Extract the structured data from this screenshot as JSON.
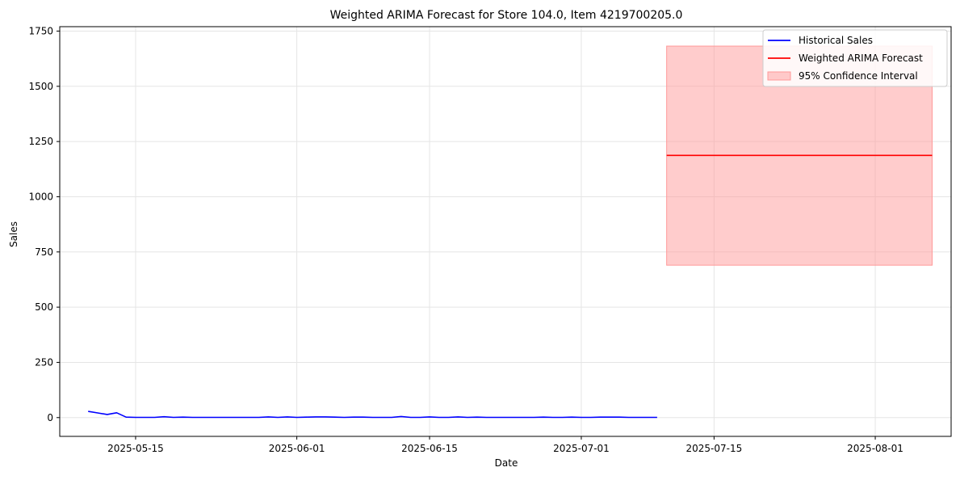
{
  "chart_data": {
    "type": "line",
    "title": "Weighted ARIMA Forecast for Store 104.0, Item 4219700205.0",
    "xlabel": "Date",
    "ylabel": "Sales",
    "x_axis_type": "date",
    "xlim": [
      "2025-05-07",
      "2025-08-09"
    ],
    "ylim": [
      -85,
      1770
    ],
    "x_ticks": [
      "2025-05-15",
      "2025-06-01",
      "2025-06-15",
      "2025-07-01",
      "2025-07-15",
      "2025-08-01"
    ],
    "y_ticks": [
      0,
      250,
      500,
      750,
      1000,
      1250,
      1500,
      1750
    ],
    "grid": true,
    "legend_position": "top-right",
    "series": [
      {
        "name": "Historical Sales",
        "kind": "line",
        "color": "#0000ff",
        "points": [
          [
            "2025-05-10",
            28
          ],
          [
            "2025-05-11",
            21
          ],
          [
            "2025-05-12",
            14
          ],
          [
            "2025-05-13",
            22
          ],
          [
            "2025-05-14",
            2
          ],
          [
            "2025-05-15",
            1
          ],
          [
            "2025-05-16",
            1
          ],
          [
            "2025-05-17",
            1
          ],
          [
            "2025-05-18",
            4
          ],
          [
            "2025-05-19",
            1
          ],
          [
            "2025-05-20",
            2
          ],
          [
            "2025-05-21",
            1
          ],
          [
            "2025-05-22",
            1
          ],
          [
            "2025-05-23",
            1
          ],
          [
            "2025-05-24",
            1
          ],
          [
            "2025-05-25",
            1
          ],
          [
            "2025-05-26",
            1
          ],
          [
            "2025-05-27",
            1
          ],
          [
            "2025-05-28",
            1
          ],
          [
            "2025-05-29",
            3
          ],
          [
            "2025-05-30",
            1
          ],
          [
            "2025-05-31",
            3
          ],
          [
            "2025-06-01",
            1
          ],
          [
            "2025-06-02",
            2
          ],
          [
            "2025-06-03",
            3
          ],
          [
            "2025-06-04",
            3
          ],
          [
            "2025-06-05",
            2
          ],
          [
            "2025-06-06",
            1
          ],
          [
            "2025-06-07",
            2
          ],
          [
            "2025-06-08",
            2
          ],
          [
            "2025-06-09",
            1
          ],
          [
            "2025-06-10",
            1
          ],
          [
            "2025-06-11",
            1
          ],
          [
            "2025-06-12",
            5
          ],
          [
            "2025-06-13",
            1
          ],
          [
            "2025-06-14",
            1
          ],
          [
            "2025-06-15",
            3
          ],
          [
            "2025-06-16",
            1
          ],
          [
            "2025-06-17",
            1
          ],
          [
            "2025-06-18",
            3
          ],
          [
            "2025-06-19",
            1
          ],
          [
            "2025-06-20",
            2
          ],
          [
            "2025-06-21",
            1
          ],
          [
            "2025-06-22",
            1
          ],
          [
            "2025-06-23",
            1
          ],
          [
            "2025-06-24",
            1
          ],
          [
            "2025-06-25",
            1
          ],
          [
            "2025-06-26",
            1
          ],
          [
            "2025-06-27",
            2
          ],
          [
            "2025-06-28",
            1
          ],
          [
            "2025-06-29",
            1
          ],
          [
            "2025-06-30",
            2
          ],
          [
            "2025-07-01",
            1
          ],
          [
            "2025-07-02",
            1
          ],
          [
            "2025-07-03",
            2
          ],
          [
            "2025-07-04",
            2
          ],
          [
            "2025-07-05",
            2
          ],
          [
            "2025-07-06",
            1
          ],
          [
            "2025-07-07",
            1
          ],
          [
            "2025-07-08",
            1
          ],
          [
            "2025-07-09",
            1
          ]
        ]
      },
      {
        "name": "Weighted ARIMA Forecast",
        "kind": "line",
        "color": "#ff0000",
        "points": [
          [
            "2025-07-10",
            1187
          ],
          [
            "2025-08-07",
            1187
          ]
        ]
      },
      {
        "name": "95% Confidence Interval",
        "kind": "band",
        "color": "#ff9999",
        "x": [
          "2025-07-10",
          "2025-08-07"
        ],
        "lower": 690,
        "upper": 1682
      }
    ]
  }
}
